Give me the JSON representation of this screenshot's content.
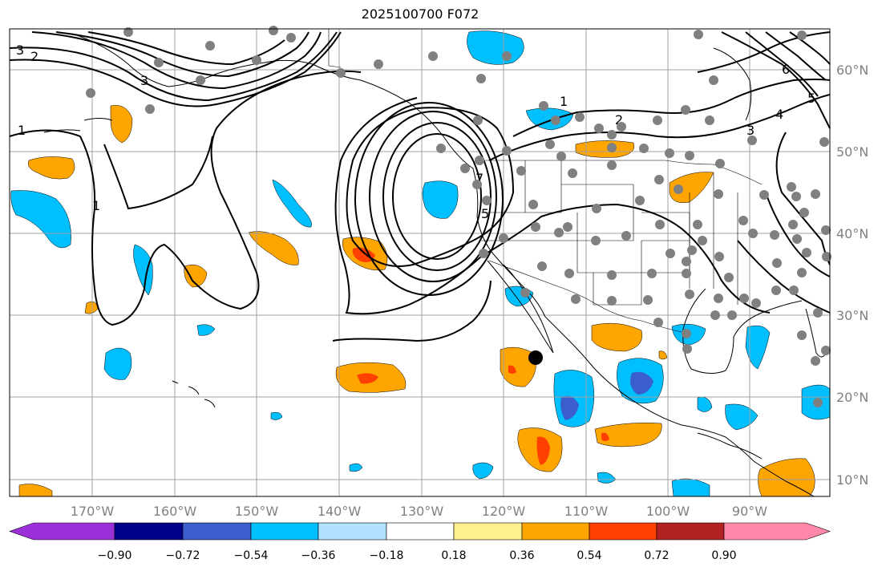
{
  "title": "2025100700 F072",
  "map": {
    "lon_labels": [
      "170°W",
      "160°W",
      "150°W",
      "140°W",
      "130°W",
      "120°W",
      "110°W",
      "100°W",
      "90°W"
    ],
    "lat_labels": [
      "60°N",
      "50°N",
      "40°N",
      "30°N",
      "20°N",
      "10°N"
    ],
    "contour_labels": [
      "3",
      "2",
      "3",
      "1",
      "1",
      "1",
      "2",
      "3",
      "4",
      "5",
      "6",
      "5",
      "7"
    ],
    "marker": "observation-station"
  },
  "colorbar": {
    "ticks": [
      "−0.90",
      "−0.72",
      "−0.54",
      "−0.36",
      "−0.18",
      "0.18",
      "0.36",
      "0.54",
      "0.72",
      "0.90"
    ],
    "colors": [
      "#9b30d9",
      "#00008b",
      "#3a5fcd",
      "#00bfff",
      "#b0e2ff",
      "#ffffff",
      "#fff08f",
      "#ffa500",
      "#ff4000",
      "#b22222",
      "#ff88aa"
    ]
  }
}
